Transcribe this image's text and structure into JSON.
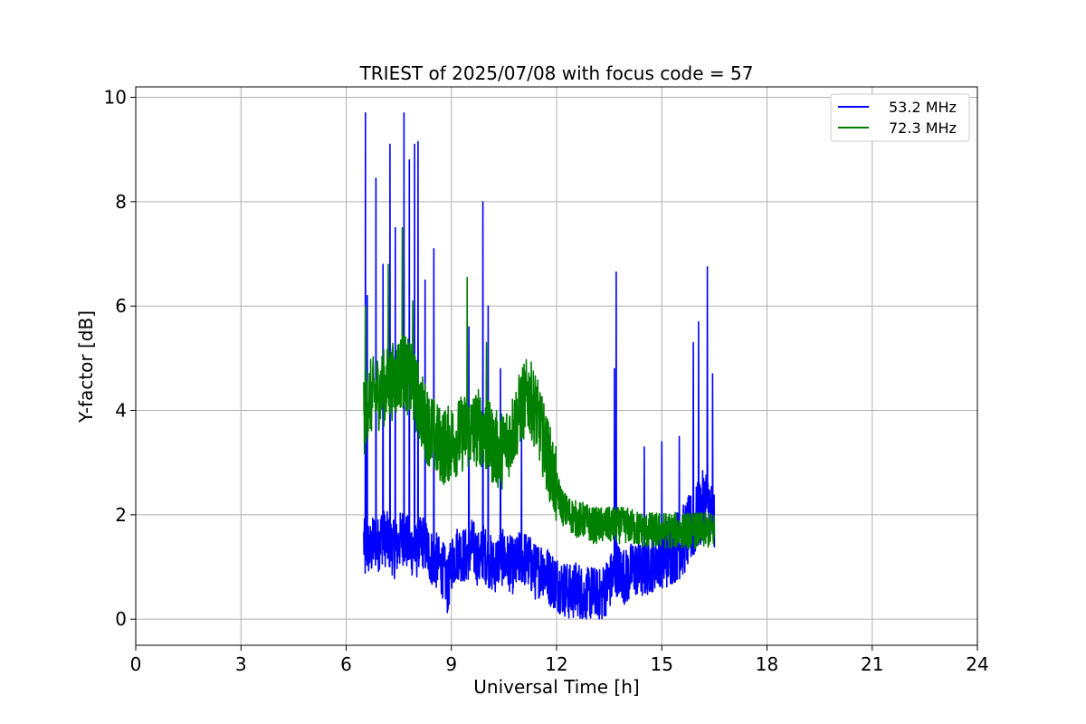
{
  "chart_data": {
    "type": "line",
    "title": "TRIEST of 2025/07/08 with focus code = 57",
    "xlabel": "Universal Time [h]",
    "ylabel": "Y-factor [dB]",
    "xlim": [
      0,
      24
    ],
    "ylim": [
      -0.5,
      10.2
    ],
    "xticks": [
      0,
      3,
      6,
      9,
      12,
      15,
      18,
      21,
      24
    ],
    "yticks": [
      0,
      2,
      4,
      6,
      8,
      10
    ],
    "grid": true,
    "legend_position": "top-right",
    "series": [
      {
        "name": "53.2 MHz",
        "color": "#0000ff",
        "x": [
          6.5,
          6.55,
          6.6,
          6.7,
          6.8,
          6.9,
          7.0,
          7.2,
          7.4,
          7.6,
          7.8,
          8.0,
          8.2,
          8.4,
          8.6,
          8.8,
          8.9,
          9.0,
          9.2,
          9.4,
          9.6,
          9.8,
          9.9,
          10.0,
          10.2,
          10.4,
          10.6,
          10.8,
          11.0,
          11.2,
          11.4,
          11.6,
          11.8,
          12.0,
          12.2,
          12.4,
          12.6,
          12.8,
          13.0,
          13.2,
          13.4,
          13.6,
          13.7,
          13.8,
          14.0,
          14.2,
          14.4,
          14.6,
          14.8,
          15.0,
          15.2,
          15.4,
          15.6,
          15.8,
          16.0,
          16.2,
          16.3,
          16.4,
          16.5
        ],
        "y": [
          1.5,
          1.2,
          1.4,
          1.3,
          1.5,
          1.4,
          1.6,
          1.5,
          1.3,
          1.6,
          1.4,
          1.3,
          1.5,
          1.2,
          1.1,
          0.9,
          0.6,
          1.1,
          1.3,
          1.2,
          1.4,
          1.1,
          1.3,
          1.2,
          1.0,
          1.2,
          1.1,
          1.0,
          1.2,
          1.1,
          0.9,
          1.0,
          0.8,
          0.7,
          0.6,
          0.5,
          0.6,
          0.4,
          0.5,
          0.4,
          0.6,
          0.8,
          1.0,
          0.9,
          0.8,
          1.0,
          0.9,
          1.0,
          1.1,
          1.2,
          1.3,
          1.4,
          1.5,
          1.7,
          1.9,
          2.2,
          2.3,
          2.0,
          1.8
        ],
        "spikes": [
          {
            "x": 6.55,
            "y": 9.7
          },
          {
            "x": 6.6,
            "y": 6.2
          },
          {
            "x": 6.85,
            "y": 8.45
          },
          {
            "x": 7.05,
            "y": 6.8
          },
          {
            "x": 7.25,
            "y": 9.1
          },
          {
            "x": 7.4,
            "y": 7.5
          },
          {
            "x": 7.65,
            "y": 9.7
          },
          {
            "x": 7.8,
            "y": 8.8
          },
          {
            "x": 7.95,
            "y": 9.1
          },
          {
            "x": 8.05,
            "y": 9.15
          },
          {
            "x": 8.25,
            "y": 6.5
          },
          {
            "x": 8.5,
            "y": 7.1
          },
          {
            "x": 9.5,
            "y": 5.6
          },
          {
            "x": 9.9,
            "y": 8.0
          },
          {
            "x": 10.05,
            "y": 6.0
          },
          {
            "x": 10.4,
            "y": 4.8
          },
          {
            "x": 11.0,
            "y": 3.5
          },
          {
            "x": 13.65,
            "y": 4.8
          },
          {
            "x": 13.7,
            "y": 6.65
          },
          {
            "x": 14.5,
            "y": 3.3
          },
          {
            "x": 15.0,
            "y": 3.4
          },
          {
            "x": 15.5,
            "y": 3.5
          },
          {
            "x": 15.9,
            "y": 5.3
          },
          {
            "x": 16.05,
            "y": 5.7
          },
          {
            "x": 16.3,
            "y": 6.75
          },
          {
            "x": 16.45,
            "y": 4.7
          }
        ]
      },
      {
        "name": "72.3 MHz",
        "color": "#008000",
        "x": [
          6.5,
          6.6,
          6.8,
          7.0,
          7.2,
          7.4,
          7.6,
          7.8,
          8.0,
          8.2,
          8.4,
          8.6,
          8.8,
          9.0,
          9.2,
          9.4,
          9.6,
          9.8,
          10.0,
          10.2,
          10.4,
          10.6,
          10.8,
          11.0,
          11.2,
          11.4,
          11.6,
          11.8,
          12.0,
          12.2,
          12.4,
          12.6,
          12.8,
          13.0,
          13.5,
          14.0,
          14.5,
          15.0,
          15.5,
          16.0,
          16.5
        ],
        "y": [
          3.8,
          4.2,
          4.3,
          4.4,
          4.5,
          4.6,
          4.8,
          4.6,
          4.3,
          3.9,
          3.6,
          3.4,
          3.3,
          3.4,
          3.5,
          3.6,
          3.6,
          3.7,
          3.5,
          3.3,
          3.2,
          3.4,
          3.7,
          4.1,
          4.3,
          4.0,
          3.5,
          3.0,
          2.5,
          2.1,
          2.0,
          1.9,
          1.9,
          1.8,
          1.8,
          1.8,
          1.7,
          1.7,
          1.7,
          1.7,
          1.7
        ],
        "spikes": [
          {
            "x": 6.55,
            "y": 6.0
          },
          {
            "x": 7.2,
            "y": 6.8
          },
          {
            "x": 7.6,
            "y": 7.5
          },
          {
            "x": 7.9,
            "y": 6.1
          },
          {
            "x": 9.45,
            "y": 6.55
          },
          {
            "x": 10.0,
            "y": 5.3
          }
        ]
      }
    ]
  }
}
